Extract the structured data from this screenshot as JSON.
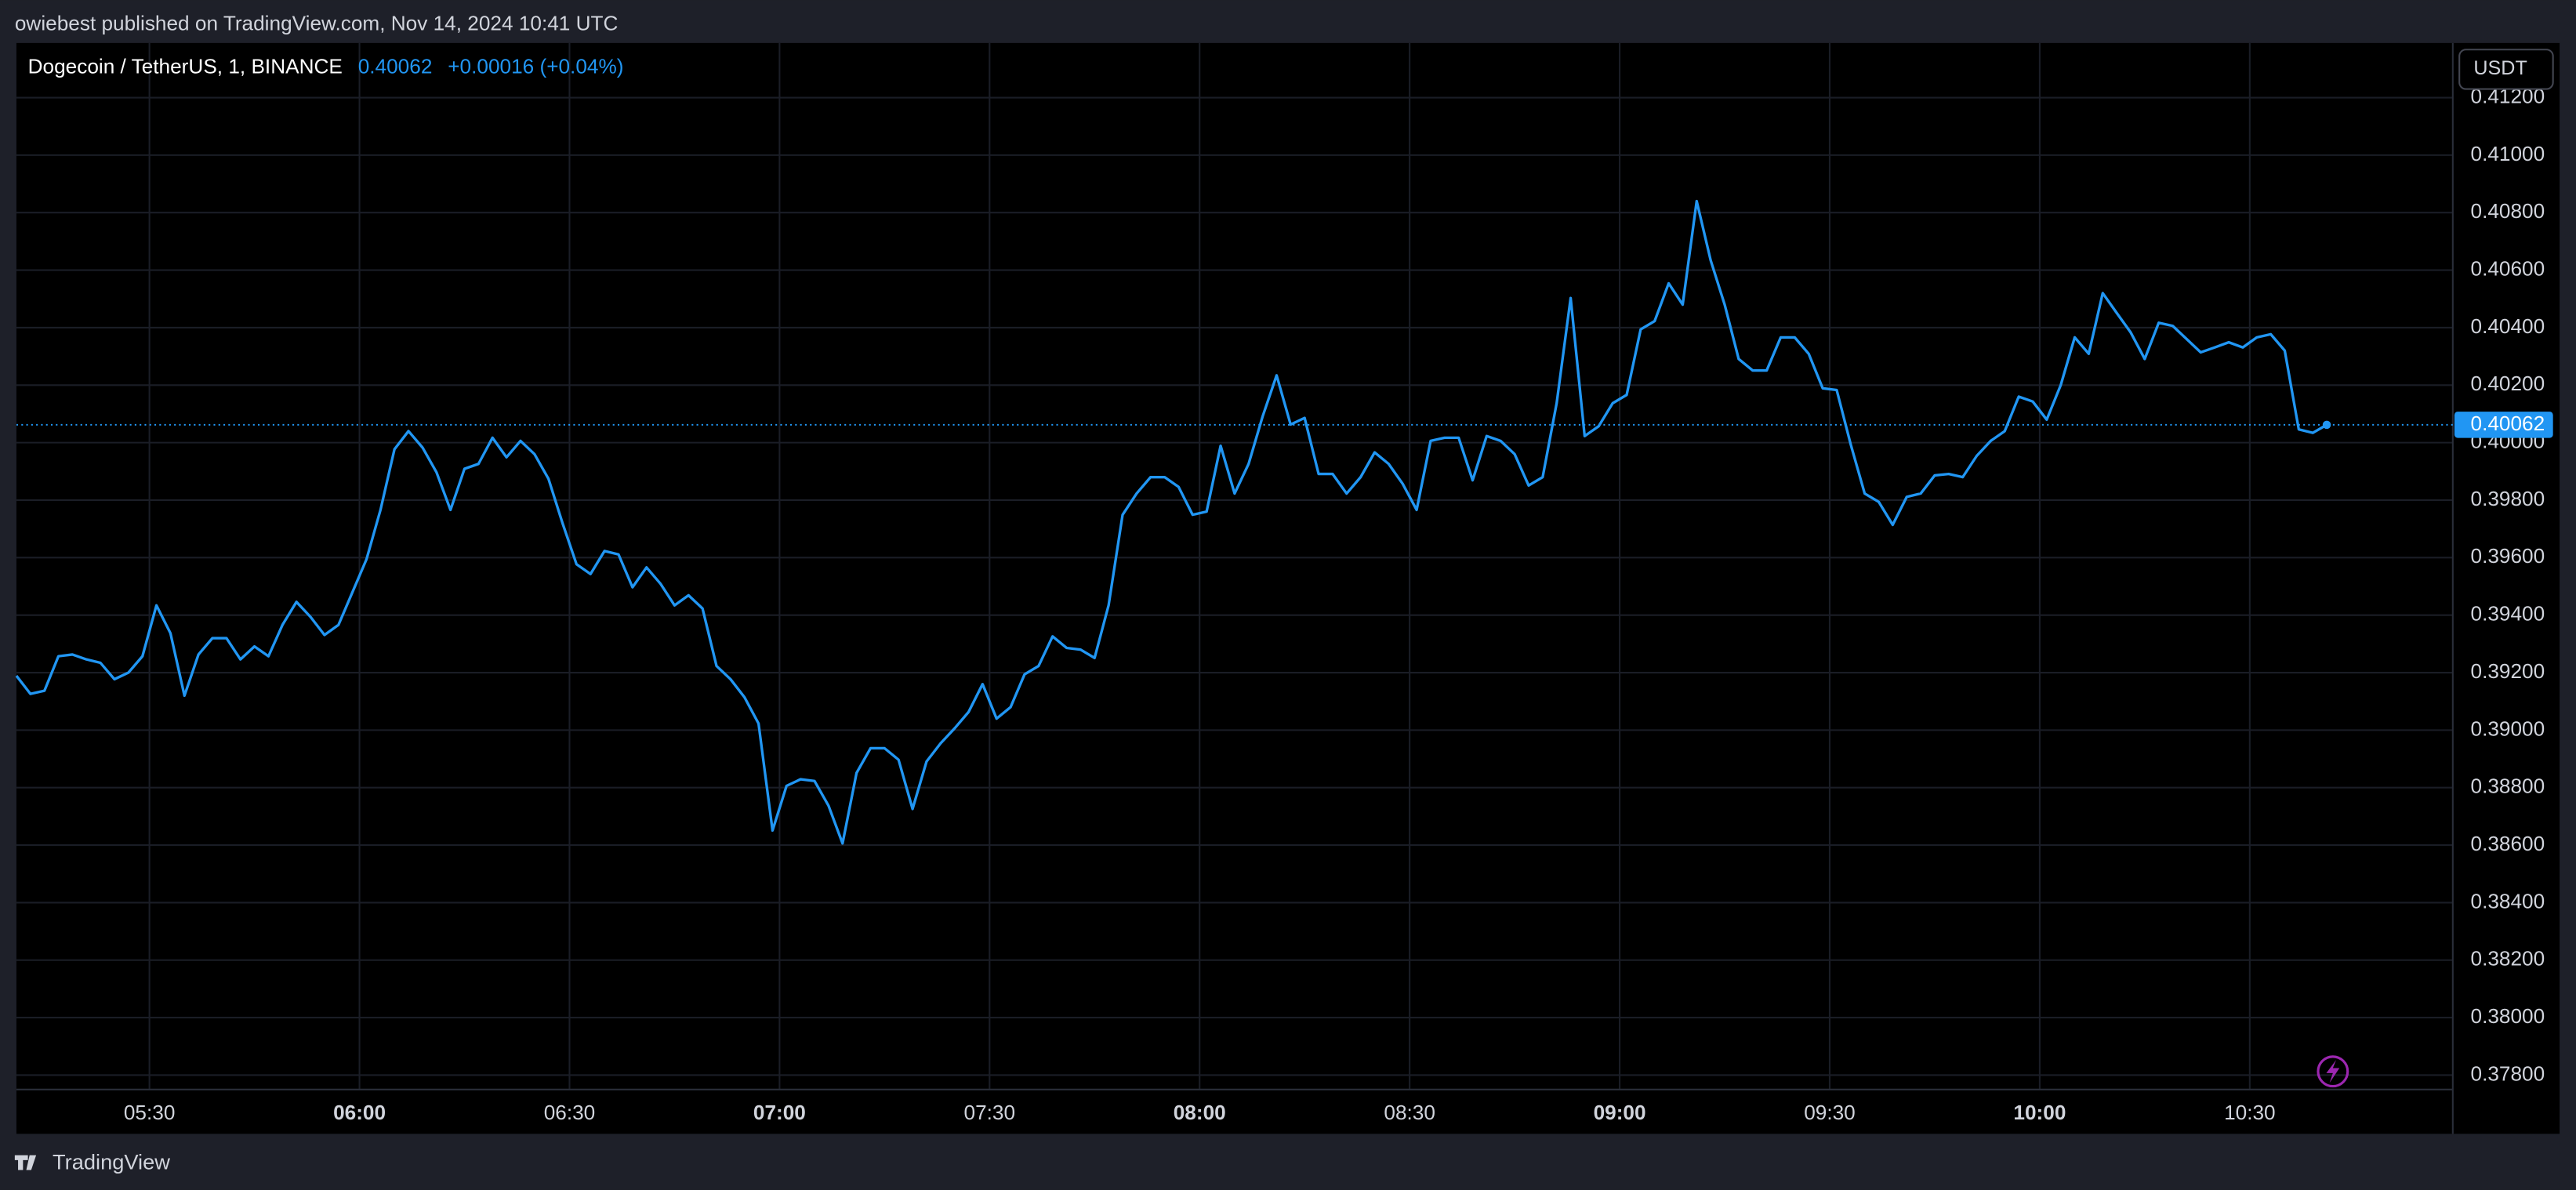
{
  "header": {
    "published": "owiebest published on TradingView.com, Nov 14, 2024 10:41 UTC",
    "currency": "USDT",
    "brand": "TradingView"
  },
  "chart_data": {
    "type": "line",
    "title": "Dogecoin / TetherUS, 1, BINANCE",
    "last_value": 0.40062,
    "change": "+0.00016 (+0.04%)",
    "color": "#2196f3",
    "x": [
      "05:11",
      "05:13",
      "05:15",
      "05:17",
      "05:19",
      "05:21",
      "05:23",
      "05:25",
      "05:27",
      "05:29",
      "05:31",
      "05:33",
      "05:35",
      "05:37",
      "05:39",
      "05:41",
      "05:43",
      "05:45",
      "05:47",
      "05:49",
      "05:51",
      "05:53",
      "05:55",
      "05:57",
      "05:59",
      "06:01",
      "06:03",
      "06:05",
      "06:07",
      "06:09",
      "06:11",
      "06:13",
      "06:15",
      "06:17",
      "06:19",
      "06:21",
      "06:23",
      "06:25",
      "06:27",
      "06:29",
      "06:31",
      "06:33",
      "06:35",
      "06:37",
      "06:39",
      "06:41",
      "06:43",
      "06:45",
      "06:47",
      "06:49",
      "06:51",
      "06:53",
      "06:55",
      "06:57",
      "06:59",
      "07:01",
      "07:03",
      "07:05",
      "07:07",
      "07:09",
      "07:11",
      "07:13",
      "07:15",
      "07:17",
      "07:19",
      "07:21",
      "07:23",
      "07:25",
      "07:27",
      "07:29",
      "07:31",
      "07:33",
      "07:35",
      "07:37",
      "07:39",
      "07:41",
      "07:43",
      "07:45",
      "07:47",
      "07:49",
      "07:51",
      "07:53",
      "07:55",
      "07:57",
      "07:59",
      "08:01",
      "08:03",
      "08:05",
      "08:07",
      "08:09",
      "08:11",
      "08:13",
      "08:15",
      "08:17",
      "08:19",
      "08:21",
      "08:23",
      "08:25",
      "08:27",
      "08:29",
      "08:31",
      "08:33",
      "08:35",
      "08:37",
      "08:39",
      "08:41",
      "08:43",
      "08:45",
      "08:47",
      "08:49",
      "08:51",
      "08:53",
      "08:55",
      "08:57",
      "08:59",
      "09:01",
      "09:03",
      "09:05",
      "09:07",
      "09:09",
      "09:11",
      "09:13",
      "09:15",
      "09:17",
      "09:19",
      "09:21",
      "09:23",
      "09:25",
      "09:27",
      "09:29",
      "09:31",
      "09:33",
      "09:35",
      "09:37",
      "09:39",
      "09:41",
      "09:43",
      "09:45",
      "09:47",
      "09:49",
      "09:51",
      "09:53",
      "09:55",
      "09:57",
      "09:59",
      "10:01",
      "10:03",
      "10:05",
      "10:07",
      "10:09",
      "10:11",
      "10:13",
      "10:15",
      "10:17",
      "10:19",
      "10:21",
      "10:23",
      "10:25",
      "10:27",
      "10:29",
      "10:31",
      "10:33",
      "10:35",
      "10:37",
      "10:39",
      "10:41"
    ],
    "values": [
      0.39189,
      0.39126,
      0.39137,
      0.39257,
      0.39263,
      0.39246,
      0.39234,
      0.39177,
      0.392,
      0.39257,
      0.39434,
      0.39337,
      0.3912,
      0.39263,
      0.3932,
      0.3932,
      0.39246,
      0.39291,
      0.39257,
      0.39366,
      0.39446,
      0.39394,
      0.39331,
      0.39366,
      0.3948,
      0.39594,
      0.39766,
      0.39977,
      0.4004,
      0.39983,
      0.39897,
      0.39766,
      0.39909,
      0.39926,
      0.40017,
      0.39949,
      0.40006,
      0.3996,
      0.39874,
      0.3972,
      0.39577,
      0.39543,
      0.39623,
      0.39611,
      0.39497,
      0.39566,
      0.39509,
      0.39434,
      0.39469,
      0.39423,
      0.39223,
      0.39177,
      0.39114,
      0.39023,
      0.38651,
      0.38806,
      0.38829,
      0.38823,
      0.38737,
      0.38606,
      0.38851,
      0.38937,
      0.38937,
      0.38897,
      0.38726,
      0.38891,
      0.38954,
      0.39006,
      0.39063,
      0.3916,
      0.3904,
      0.3908,
      0.39194,
      0.39223,
      0.39326,
      0.39286,
      0.3928,
      0.39251,
      0.39434,
      0.39749,
      0.39823,
      0.3988,
      0.3988,
      0.39846,
      0.39749,
      0.3976,
      0.39989,
      0.39823,
      0.39926,
      0.40091,
      0.40234,
      0.40063,
      0.40086,
      0.39891,
      0.39891,
      0.39823,
      0.3988,
      0.39966,
      0.39926,
      0.39857,
      0.39766,
      0.40006,
      0.40017,
      0.40017,
      0.39869,
      0.40023,
      0.40006,
      0.3996,
      0.39851,
      0.3988,
      0.40137,
      0.40503,
      0.40023,
      0.40057,
      0.40137,
      0.40166,
      0.40394,
      0.40423,
      0.40554,
      0.4048,
      0.4084,
      0.40634,
      0.4048,
      0.40291,
      0.40251,
      0.40251,
      0.40366,
      0.40366,
      0.40309,
      0.40189,
      0.40183,
      0.39994,
      0.39823,
      0.39794,
      0.39714,
      0.39811,
      0.39823,
      0.39886,
      0.39891,
      0.3988,
      0.39954,
      0.40006,
      0.4004,
      0.4016,
      0.40143,
      0.4008,
      0.402,
      0.40366,
      0.40309,
      0.4052,
      0.40451,
      0.40383,
      0.40291,
      0.40417,
      0.40406,
      0.4036,
      0.40314,
      0.40331,
      0.40349,
      0.40331,
      0.40366,
      0.40377,
      0.4032,
      0.40046,
      0.40034,
      0.40062
    ],
    "xlim": [
      "05:11",
      "10:59"
    ],
    "xticks": [
      "05:30",
      "06:00",
      "06:30",
      "07:00",
      "07:30",
      "08:00",
      "08:30",
      "09:00",
      "09:30",
      "10:00",
      "10:30"
    ],
    "ylim": [
      0.3775,
      0.4139
    ],
    "yticks": [
      {
        "value": 0.378,
        "label": "0.37800"
      },
      {
        "value": 0.38,
        "label": "0.38000"
      },
      {
        "value": 0.382,
        "label": "0.38200"
      },
      {
        "value": 0.384,
        "label": "0.38400"
      },
      {
        "value": 0.386,
        "label": "0.38600"
      },
      {
        "value": 0.388,
        "label": "0.38800"
      },
      {
        "value": 0.39,
        "label": "0.39000"
      },
      {
        "value": 0.392,
        "label": "0.39200"
      },
      {
        "value": 0.394,
        "label": "0.39400"
      },
      {
        "value": 0.396,
        "label": "0.39600"
      },
      {
        "value": 0.398,
        "label": "0.39800"
      },
      {
        "value": 0.4,
        "label": "0.40000"
      },
      {
        "value": 0.402,
        "label": "0.40200"
      },
      {
        "value": 0.404,
        "label": "0.40400"
      },
      {
        "value": 0.406,
        "label": "0.40600"
      },
      {
        "value": 0.408,
        "label": "0.40800"
      },
      {
        "value": 0.41,
        "label": "0.41000"
      },
      {
        "value": 0.412,
        "label": "0.41200"
      }
    ],
    "grid": true
  }
}
